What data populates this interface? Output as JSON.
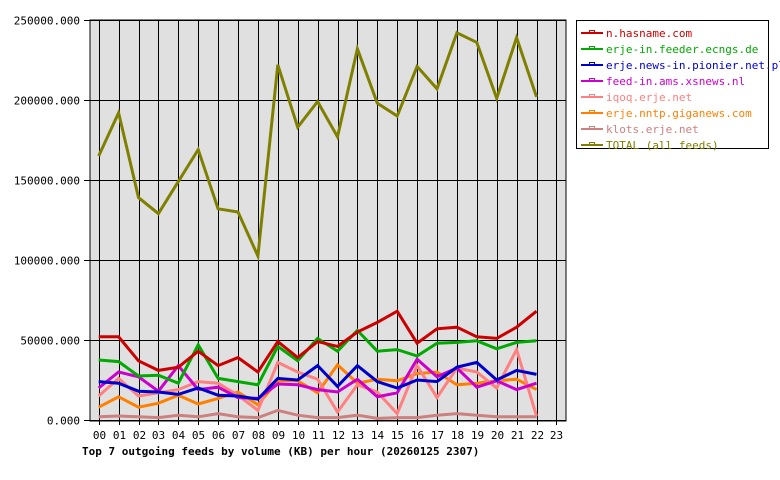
{
  "chart_data": {
    "type": "line",
    "title": "Top 7 outgoing feeds by volume (KB) per hour (20260125 2307)",
    "xlabel": "",
    "ylabel": "",
    "ylim": [
      0,
      250000
    ],
    "grid": true,
    "legend_position": "right",
    "y_ticks": [
      "0.000",
      "50000.000",
      "100000.000",
      "150000.000",
      "200000.000",
      "250000.000"
    ],
    "categories": [
      "00",
      "01",
      "02",
      "03",
      "04",
      "05",
      "06",
      "07",
      "08",
      "09",
      "10",
      "11",
      "12",
      "13",
      "14",
      "15",
      "16",
      "17",
      "18",
      "19",
      "20",
      "21",
      "22",
      "23"
    ],
    "series": [
      {
        "name": "n.hasname.com",
        "color": "#CC0000",
        "values": [
          52000,
          52000,
          37000,
          31000,
          33000,
          43000,
          34000,
          39000,
          30000,
          49000,
          39000,
          49000,
          46000,
          55000,
          61000,
          68000,
          48000,
          57000,
          58000,
          52000,
          51000,
          58000,
          68000
        ]
      },
      {
        "name": "erje-in.feeder.ecngs.de",
        "color": "#00AA00",
        "values": [
          37500,
          36500,
          27500,
          28000,
          23000,
          47000,
          26000,
          24000,
          22000,
          46000,
          37000,
          51000,
          43000,
          56000,
          43000,
          44000,
          40000,
          48000,
          48500,
          49500,
          44500,
          48500,
          49500
        ]
      },
      {
        "name": "erje.news-in.pionier.net.pl",
        "color": "#0000CC",
        "values": [
          24000,
          23000,
          18000,
          17500,
          16000,
          20000,
          15500,
          15000,
          13000,
          26000,
          25000,
          34000,
          21000,
          34000,
          24000,
          20000,
          25000,
          24000,
          33000,
          36000,
          25000,
          31000,
          28500
        ]
      },
      {
        "name": "feed-in.ams.xsnews.nl",
        "color": "#CC00CC",
        "values": [
          20000,
          30000,
          27000,
          18000,
          34000,
          19000,
          20500,
          14000,
          13500,
          22500,
          22000,
          19000,
          17500,
          25500,
          14500,
          17000,
          38000,
          27000,
          32500,
          20500,
          24500,
          19000,
          23000
        ]
      },
      {
        "name": "iqoq.erje.net",
        "color": "#FF8080",
        "values": [
          15000,
          26000,
          15000,
          17000,
          19000,
          24000,
          23000,
          15500,
          6000,
          36000,
          30000,
          25500,
          5000,
          22000,
          17500,
          4000,
          34000,
          14000,
          32500,
          30000,
          20000,
          44000,
          2500
        ]
      },
      {
        "name": "erje.nntp.giganews.com",
        "color": "#FF8000",
        "values": [
          8000,
          14500,
          8000,
          10500,
          15500,
          10000,
          13500,
          17500,
          9500,
          24500,
          24500,
          17000,
          34500,
          23000,
          25500,
          24500,
          29000,
          30000,
          22000,
          23000,
          24500,
          25500,
          19000
        ]
      },
      {
        "name": "klots.erje.net",
        "color": "#CC8080",
        "values": [
          2000,
          2500,
          2000,
          1500,
          3000,
          2000,
          4000,
          2000,
          1500,
          6000,
          3000,
          1500,
          1500,
          3000,
          1000,
          1500,
          1500,
          3000,
          4000,
          3000,
          2000,
          2000,
          2000
        ]
      },
      {
        "name": "TOTAL (all feeds)",
        "color": "#808000",
        "values": [
          165000,
          192000,
          139000,
          129000,
          149000,
          169000,
          132000,
          130000,
          102500,
          222000,
          183000,
          199000,
          177000,
          232000,
          198000,
          190000,
          221000,
          207000,
          242000,
          236000,
          201000,
          239000,
          202000
        ]
      }
    ]
  },
  "legend": {
    "items": [
      {
        "label": "n.hasname.com",
        "color": "#CC0000"
      },
      {
        "label": "erje-in.feeder.ecngs.de",
        "color": "#00AA00"
      },
      {
        "label": "erje.news-in.pionier.net.pl",
        "color": "#0000CC"
      },
      {
        "label": "feed-in.ams.xsnews.nl",
        "color": "#CC00CC"
      },
      {
        "label": "iqoq.erje.net",
        "color": "#FF8080"
      },
      {
        "label": "erje.nntp.giganews.com",
        "color": "#FF8000"
      },
      {
        "label": "klots.erje.net",
        "color": "#CC8080"
      },
      {
        "label": "TOTAL (all feeds)",
        "color": "#808000"
      }
    ]
  },
  "colors": {
    "plot_background": "#E0E0E0",
    "grid": "#000000",
    "axis_text": "#000000"
  }
}
